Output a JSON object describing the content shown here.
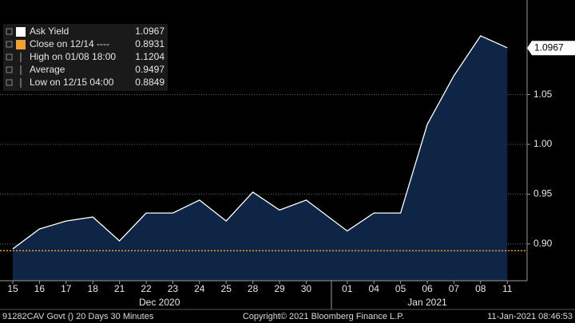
{
  "chart_data": {
    "type": "area",
    "categories": [
      "15",
      "16",
      "17",
      "18",
      "21",
      "22",
      "23",
      "24",
      "25",
      "28",
      "29",
      "30",
      "01",
      "04",
      "05",
      "06",
      "07",
      "08",
      "11"
    ],
    "x_groups": [
      {
        "label": "Dec 2020",
        "span": [
          0,
          11
        ]
      },
      {
        "label": "Jan 2021",
        "span": [
          12,
          18
        ]
      }
    ],
    "series": [
      {
        "name": "Ask Yield",
        "color": "#ffffff",
        "fill": "#0f2545",
        "last": 1.0967,
        "values": [
          0.895,
          0.915,
          0.923,
          0.927,
          0.903,
          0.931,
          0.931,
          0.944,
          0.923,
          0.952,
          0.934,
          0.944,
          0.913,
          0.931,
          0.931,
          1.02,
          1.069,
          1.109,
          1.097
        ]
      }
    ],
    "stats": [
      {
        "label": "Close on 12/14 ----",
        "value": 0.8931,
        "color": "#f0a030"
      },
      {
        "label": "High on 01/08 18:00",
        "value": 1.1204
      },
      {
        "label": "Average",
        "value": 0.9497
      },
      {
        "label": "Low on 12/15 04:00",
        "value": 0.8849
      }
    ],
    "ylim": [
      0.863,
      1.145
    ],
    "yticks": [
      {
        "value": 0.9,
        "label": "0.90"
      },
      0.95,
      {
        "value": 1,
        "label": "1.00"
      },
      1.05
    ],
    "grid": true,
    "footer": [
      "91282CAV Govt () 20 Days 30 Minutes",
      "Copyright© 2021 Bloomberg Finance L.P.",
      "11-Jan-2021 08:46:53"
    ]
  }
}
